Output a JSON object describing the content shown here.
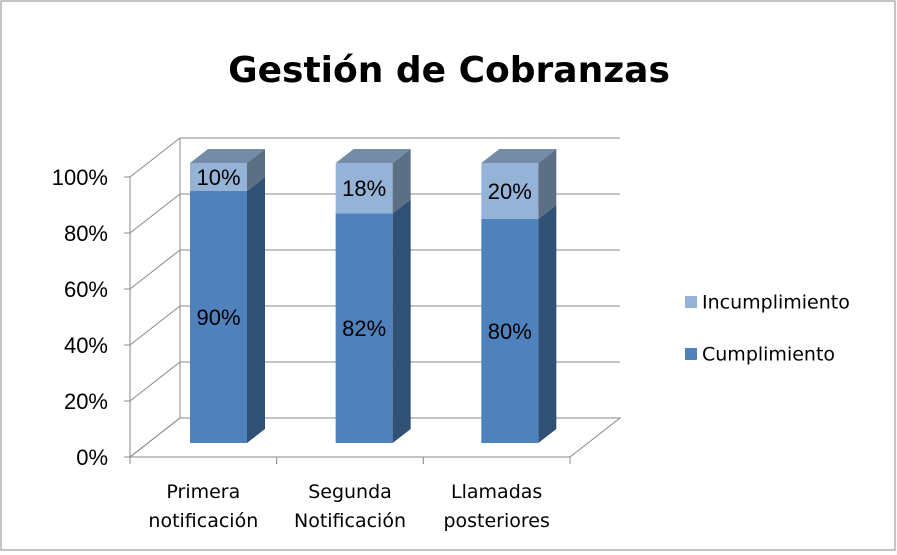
{
  "chart_data": {
    "type": "bar",
    "stacked": true,
    "three_d": true,
    "title": "Gestión de Cobranzas",
    "categories": [
      "Primera notificación",
      "Segunda Notificación",
      "Llamadas posteriores"
    ],
    "series": [
      {
        "name": "Cumplimiento",
        "color": "#4f81bd",
        "values": [
          90,
          82,
          80
        ],
        "value_labels": [
          "90%",
          "82%",
          "80%"
        ]
      },
      {
        "name": "Incumplimiento",
        "color": "#95b3d7",
        "values": [
          10,
          18,
          20
        ],
        "value_labels": [
          "10%",
          "18%",
          "20%"
        ]
      }
    ],
    "ylim": [
      0,
      100
    ],
    "yticks": [
      {
        "value": 0,
        "label": "0%"
      },
      {
        "value": 20,
        "label": "20%"
      },
      {
        "value": 40,
        "label": "40%"
      },
      {
        "value": 60,
        "label": "60%"
      },
      {
        "value": 80,
        "label": "80%"
      },
      {
        "value": 100,
        "label": "100%"
      }
    ],
    "grid": true,
    "legend": "right"
  }
}
